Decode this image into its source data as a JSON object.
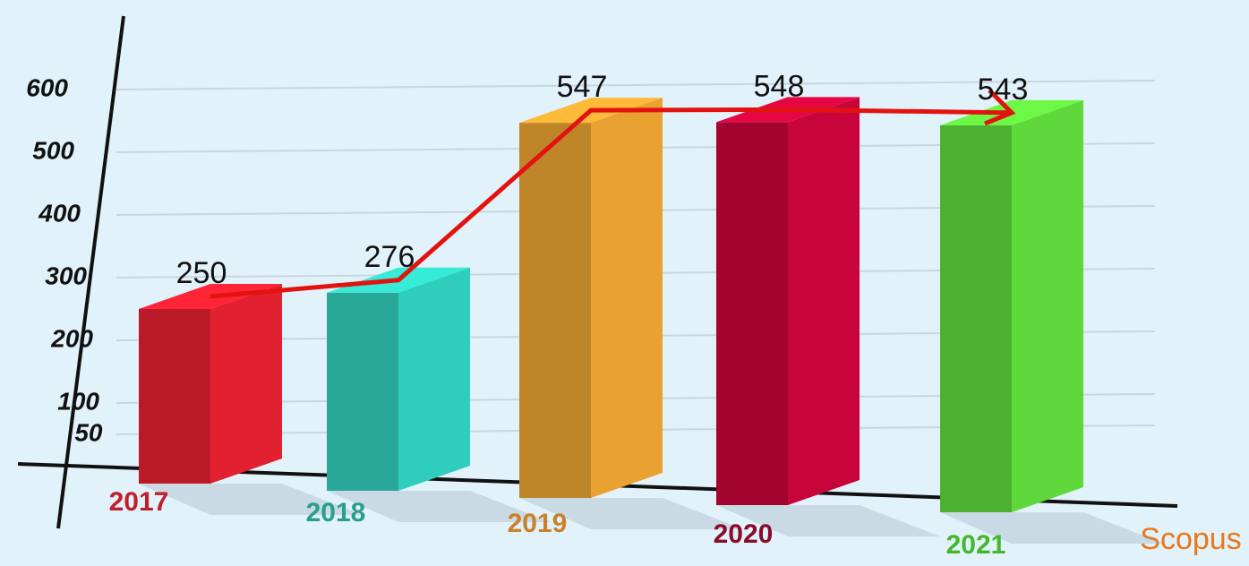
{
  "chart_data": {
    "type": "bar3d_line",
    "categories": [
      "2017",
      "2018",
      "2019",
      "2020",
      "2021"
    ],
    "values": [
      250,
      276,
      547,
      548,
      543
    ],
    "colors": [
      "#e3202f",
      "#2fcdbb",
      "#e9a232",
      "#c8053b",
      "#5ed83b"
    ],
    "label_colors": [
      "#c0202c",
      "#2a9e8e",
      "#c9822a",
      "#8a0a2a",
      "#44b82a"
    ],
    "line_color": "#e3120f",
    "ylim": [
      0,
      650
    ],
    "yticks": [
      50,
      100,
      200,
      300,
      400,
      500,
      600
    ],
    "grid": true,
    "source": "Scopus"
  }
}
